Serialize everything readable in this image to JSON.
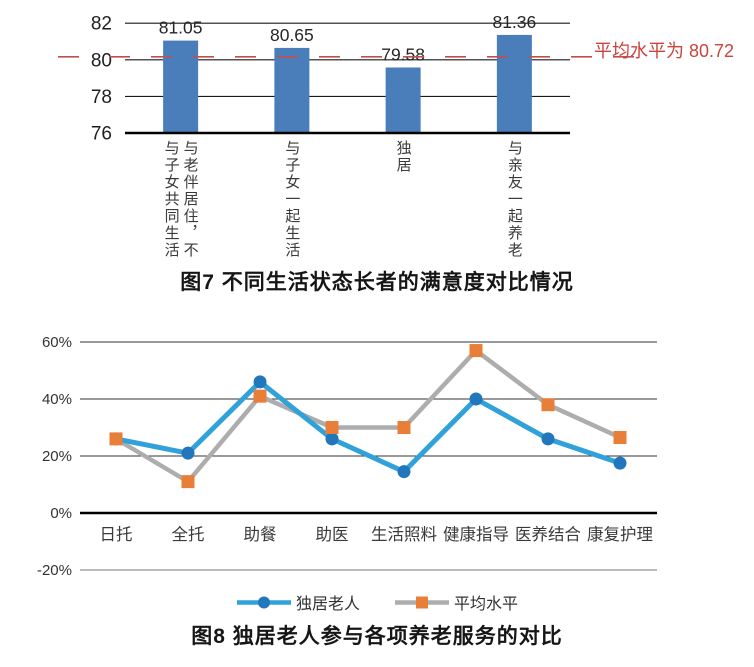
{
  "chart_data": [
    {
      "type": "bar",
      "title": "图7 不同生活状态长者的满意度对比情况",
      "categories": [
        "与老伴居住，不与子女共同生活",
        "与子女一起生活",
        "独居",
        "与亲友一起养老"
      ],
      "values": [
        81.05,
        80.65,
        79.58,
        81.36
      ],
      "value_labels": [
        "81.05",
        "80.65",
        "79.58",
        "81.36"
      ],
      "ylim": [
        76,
        82
      ],
      "yticks": [
        76,
        78,
        80,
        82
      ],
      "ylabel": "",
      "xlabel": "",
      "grid": true,
      "bar_color": "#4a7ebb",
      "average_line": {
        "value": 80.72,
        "label": "平均水平为 80.72",
        "color": "#c0504d",
        "style": "dashed"
      }
    },
    {
      "type": "line",
      "title": "图8 独居老人参与各项养老服务的对比",
      "categories": [
        "日托",
        "全托",
        "助餐",
        "助医",
        "生活照料",
        "健康指导",
        "医养结合",
        "康复护理"
      ],
      "series": [
        {
          "name": "独居老人",
          "values": [
            26,
            21,
            46,
            26,
            14.5,
            40,
            26,
            17.5
          ],
          "line_color": "#31a2d9",
          "marker": "circle",
          "marker_color": "#2176bc"
        },
        {
          "name": "平均水平",
          "values": [
            26,
            11,
            41,
            30,
            30,
            57,
            38,
            26.5
          ],
          "line_color": "#adadad",
          "marker": "square",
          "marker_color": "#e87e38"
        }
      ],
      "ylim": [
        -20,
        60
      ],
      "yticks": [
        {
          "value": 60,
          "label": "60%"
        },
        {
          "value": 40,
          "label": "40%"
        },
        {
          "value": 20,
          "label": "20%"
        },
        {
          "value": 0,
          "label": "0%"
        },
        {
          "value": -20,
          "label": "-20%"
        }
      ],
      "grid": true,
      "legend_position": "bottom"
    }
  ]
}
